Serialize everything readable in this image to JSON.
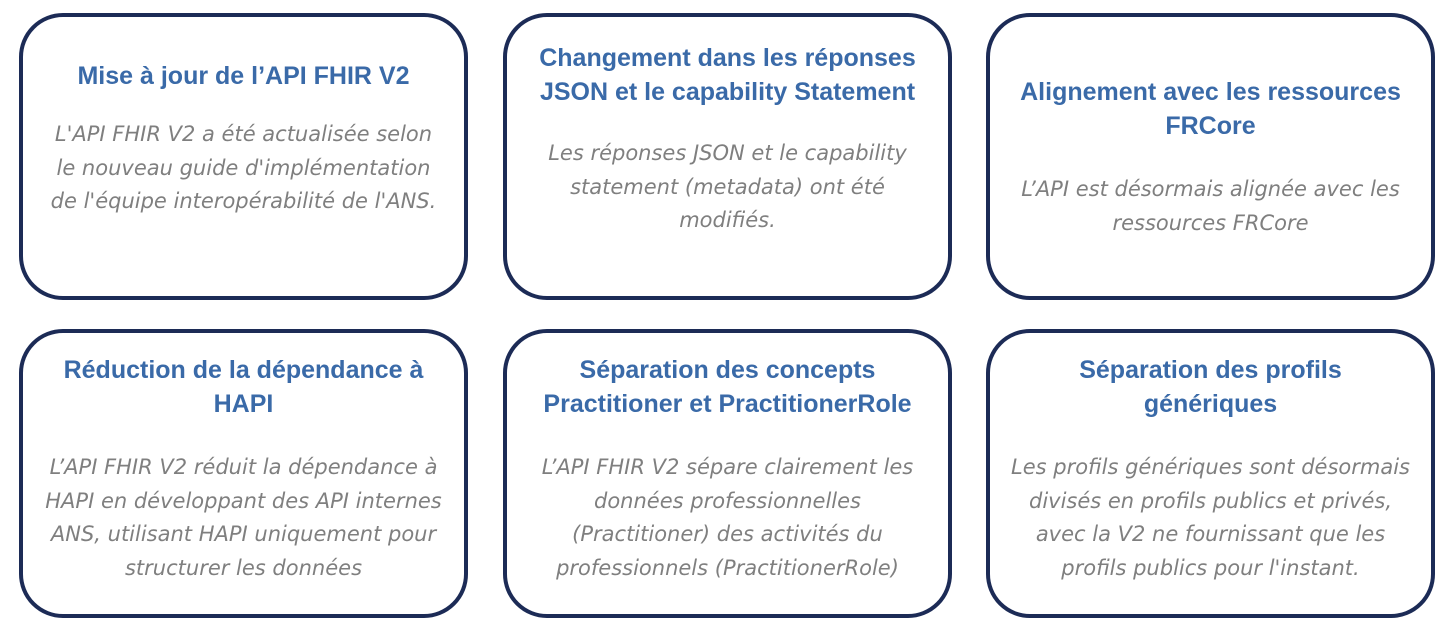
{
  "cards": [
    {
      "title": "Mise à jour de l’API FHIR V2",
      "body": "L'API FHIR V2 a été actualisée selon le nouveau guide d'implémentation de l'équipe interopérabilité de l'ANS."
    },
    {
      "title": "Changement dans les réponses JSON et le capability Statement",
      "body": "Les réponses JSON et le capability statement (metadata) ont été modifiés."
    },
    {
      "title": "Alignement avec les ressources FRCore",
      "body": "L’API est désormais alignée avec les ressources FRCore"
    },
    {
      "title": "Réduction de la dépendance à HAPI",
      "body": "L’API FHIR V2 réduit la dépendance à HAPI en développant des API internes ANS, utilisant HAPI uniquement pour structurer les données"
    },
    {
      "title": "Séparation des concepts Practitioner et PractitionerRole",
      "body": "L’API FHIR V2 sépare clairement les données professionnelles (Practitioner) des activités du professionnels (PractitionerRole)"
    },
    {
      "title": "Séparation des profils génériques",
      "body": "Les profils génériques sont désormais divisés en profils publics et privés, avec la V2 ne fournissant que les profils publics pour l'instant."
    }
  ],
  "colors": {
    "border": "#1c2b56",
    "title": "#3a6aa8",
    "body": "#7f7f7f"
  }
}
